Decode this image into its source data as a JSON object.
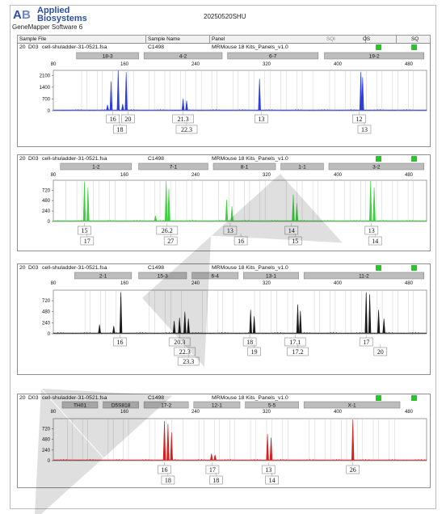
{
  "header": {
    "logo_line1": "Applied",
    "logo_line2": "Biosystems",
    "software": "GeneMapper Software 6",
    "run_date": "20250520SHU"
  },
  "columns": {
    "sample_file": "Sample File",
    "sample_name": "Sample Name",
    "panel": "Panel",
    "sqi": "SQI",
    "os": "OS",
    "sq": "SQ"
  },
  "sample": {
    "index": "20",
    "well": "D03",
    "file": "cell-shuladder-31-0521.fsa",
    "name": "C1498",
    "panel": "MRMouse 18 Kits_Panels_v1.0"
  },
  "colors": {
    "blue": "#2b3de0",
    "green": "#3ecf3e",
    "black": "#1a1a1a",
    "red": "#d62020",
    "qc_ok": "#26c626",
    "locus_box": "#bdbdbd"
  },
  "chart_data": [
    {
      "type": "line",
      "dye": "blue",
      "xlim": [
        80,
        500
      ],
      "xticks": [
        80,
        160,
        240,
        320,
        400,
        480
      ],
      "ylim": [
        0,
        2400
      ],
      "yticks": [
        0,
        700,
        1400,
        2100
      ],
      "loci": [
        {
          "name": "18-3",
          "start": 106,
          "end": 176
        },
        {
          "name": "4-2",
          "start": 182,
          "end": 270
        },
        {
          "name": "6-7",
          "start": 276,
          "end": 378
        },
        {
          "name": "19-2",
          "start": 385,
          "end": 497
        }
      ],
      "peaks": [
        {
          "x": 145,
          "height": 1750
        },
        {
          "x": 153,
          "height": 2400
        },
        {
          "x": 162,
          "height": 2300
        },
        {
          "x": 141,
          "height": 350
        },
        {
          "x": 158,
          "height": 400
        },
        {
          "x": 226,
          "height": 700
        },
        {
          "x": 230,
          "height": 600
        },
        {
          "x": 312,
          "height": 1900
        },
        {
          "x": 426,
          "height": 2300
        },
        {
          "x": 428,
          "height": 2000
        }
      ],
      "allele_row1": [
        {
          "x": 147,
          "label": "16"
        },
        {
          "x": 164,
          "label": "20"
        },
        {
          "x": 226,
          "label": "21.3"
        },
        {
          "x": 314,
          "label": "13"
        },
        {
          "x": 424,
          "label": "12"
        }
      ],
      "allele_row2": [
        {
          "x": 155,
          "label": "18"
        },
        {
          "x": 230,
          "label": "22.3"
        },
        {
          "x": 430,
          "label": "13"
        }
      ]
    },
    {
      "type": "line",
      "dye": "green",
      "xlim": [
        80,
        500
      ],
      "xticks": [
        80,
        160,
        240,
        320,
        400,
        480
      ],
      "ylim": [
        0,
        950
      ],
      "yticks": [
        0,
        240,
        480,
        720
      ],
      "loci": [
        {
          "name": "1-2",
          "start": 88,
          "end": 168
        },
        {
          "name": "7-1",
          "start": 176,
          "end": 254
        },
        {
          "name": "8-1",
          "start": 260,
          "end": 330
        },
        {
          "name": "1-1",
          "start": 336,
          "end": 384
        },
        {
          "name": "3-2",
          "start": 390,
          "end": 497
        }
      ],
      "peaks": [
        {
          "x": 115,
          "height": 920
        },
        {
          "x": 119,
          "height": 780
        },
        {
          "x": 207,
          "height": 930
        },
        {
          "x": 210,
          "height": 750
        },
        {
          "x": 195,
          "height": 130
        },
        {
          "x": 275,
          "height": 500
        },
        {
          "x": 281,
          "height": 350
        },
        {
          "x": 350,
          "height": 620
        },
        {
          "x": 354,
          "height": 420
        },
        {
          "x": 437,
          "height": 930
        },
        {
          "x": 441,
          "height": 780
        }
      ],
      "allele_row1": [
        {
          "x": 115,
          "label": "15"
        },
        {
          "x": 208,
          "label": "26.2"
        },
        {
          "x": 279,
          "label": "13"
        },
        {
          "x": 348,
          "label": "14"
        },
        {
          "x": 438,
          "label": "13"
        }
      ],
      "allele_row2": [
        {
          "x": 118,
          "label": "17"
        },
        {
          "x": 212,
          "label": "27"
        },
        {
          "x": 291,
          "label": "16"
        },
        {
          "x": 352,
          "label": "15"
        },
        {
          "x": 442,
          "label": "14"
        }
      ]
    },
    {
      "type": "line",
      "dye": "black",
      "xlim": [
        80,
        500
      ],
      "xticks": [
        80,
        160,
        240,
        320,
        400,
        480
      ],
      "ylim": [
        0,
        950
      ],
      "yticks": [
        0,
        240,
        480,
        720
      ],
      "loci": [
        {
          "name": "2-1",
          "start": 104,
          "end": 168
        },
        {
          "name": "15-3",
          "start": 176,
          "end": 230
        },
        {
          "name": "6-4",
          "start": 236,
          "end": 288
        },
        {
          "name": "13-1",
          "start": 294,
          "end": 356
        },
        {
          "name": "11-2",
          "start": 362,
          "end": 497
        }
      ],
      "peaks": [
        {
          "x": 156,
          "height": 900
        },
        {
          "x": 132,
          "height": 200
        },
        {
          "x": 148,
          "height": 170
        },
        {
          "x": 216,
          "height": 280
        },
        {
          "x": 222,
          "height": 350
        },
        {
          "x": 228,
          "height": 480
        },
        {
          "x": 232,
          "height": 330
        },
        {
          "x": 302,
          "height": 520
        },
        {
          "x": 306,
          "height": 380
        },
        {
          "x": 355,
          "height": 640
        },
        {
          "x": 358,
          "height": 500
        },
        {
          "x": 432,
          "height": 900
        },
        {
          "x": 436,
          "height": 860
        },
        {
          "x": 446,
          "height": 520
        },
        {
          "x": 452,
          "height": 330
        }
      ],
      "allele_row1": [
        {
          "x": 155,
          "label": "16"
        },
        {
          "x": 222,
          "label": "20.3"
        },
        {
          "x": 301,
          "label": "18"
        },
        {
          "x": 352,
          "label": "17.1"
        },
        {
          "x": 432,
          "label": "17"
        }
      ],
      "allele_row2": [
        {
          "x": 228,
          "label": "22.3"
        },
        {
          "x": 306,
          "label": "19"
        },
        {
          "x": 355,
          "label": "17.2"
        },
        {
          "x": 448,
          "label": "20"
        }
      ],
      "allele_row3": [
        {
          "x": 232,
          "label": "23.3"
        }
      ]
    },
    {
      "type": "line",
      "dye": "red",
      "xlim": [
        80,
        500
      ],
      "xticks": [
        80,
        160,
        240,
        320,
        400,
        480
      ],
      "ylim": [
        0,
        950
      ],
      "yticks": [
        0,
        240,
        480,
        720
      ],
      "loci": [
        {
          "name": "TH01",
          "start": 90,
          "end": 130
        },
        {
          "name": "D5S818",
          "start": 136,
          "end": 176
        },
        {
          "name": "17-2",
          "start": 182,
          "end": 232
        },
        {
          "name": "12-1",
          "start": 238,
          "end": 290
        },
        {
          "name": "5-5",
          "start": 296,
          "end": 356
        },
        {
          "name": "X-1",
          "start": 362,
          "end": 470
        }
      ],
      "peaks": [
        {
          "x": 205,
          "height": 900
        },
        {
          "x": 209,
          "height": 830
        },
        {
          "x": 213,
          "height": 640
        },
        {
          "x": 258,
          "height": 160
        },
        {
          "x": 262,
          "height": 130
        },
        {
          "x": 321,
          "height": 600
        },
        {
          "x": 325,
          "height": 520
        },
        {
          "x": 417,
          "height": 930
        }
      ],
      "allele_row1": [
        {
          "x": 205,
          "label": "16"
        },
        {
          "x": 259,
          "label": "17"
        },
        {
          "x": 322,
          "label": "13"
        },
        {
          "x": 417,
          "label": "26"
        }
      ],
      "allele_row2": [
        {
          "x": 209,
          "label": "18"
        },
        {
          "x": 263,
          "label": "18"
        },
        {
          "x": 326,
          "label": "14"
        }
      ]
    }
  ]
}
